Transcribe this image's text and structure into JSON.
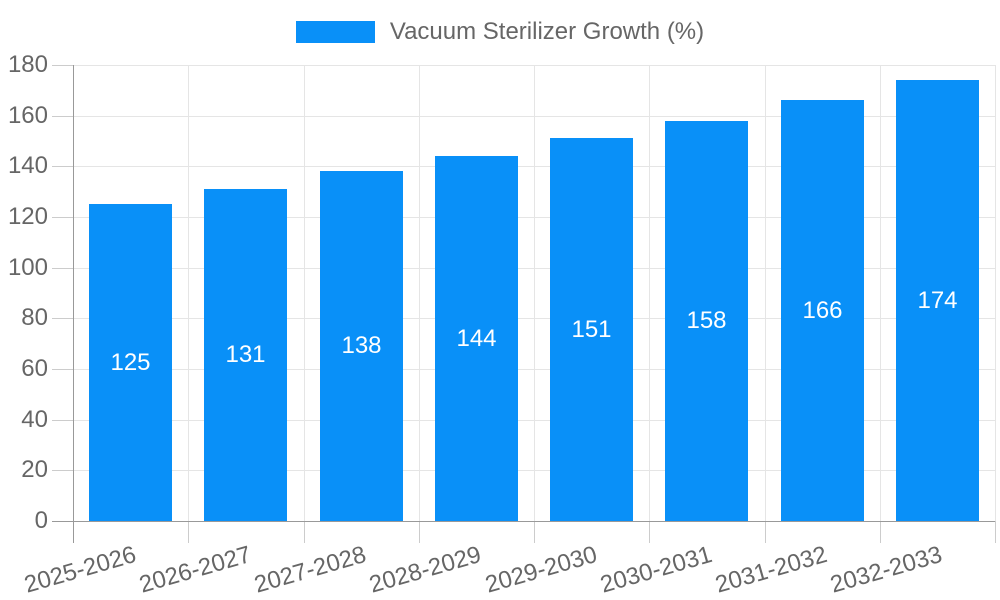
{
  "chart_data": {
    "type": "bar",
    "title": "",
    "legend": [
      "Vacuum Sterilizer Growth (%)"
    ],
    "legend_position": "top",
    "categories": [
      "2025-2026",
      "2026-2027",
      "2027-2028",
      "2028-2029",
      "2029-2030",
      "2030-2031",
      "2031-2032",
      "2032-2033"
    ],
    "series": [
      {
        "name": "Vacuum Sterilizer Growth (%)",
        "values": [
          125,
          131,
          138,
          144,
          151,
          158,
          166,
          174
        ]
      }
    ],
    "values": [
      125,
      131,
      138,
      144,
      151,
      158,
      166,
      174
    ],
    "value_labels_shown": true,
    "xlabel": "",
    "ylabel": "",
    "ylim": [
      0,
      180
    ],
    "ytick_step": 20,
    "yticks": [
      0,
      20,
      40,
      60,
      80,
      100,
      120,
      140,
      160,
      180
    ],
    "grid": true,
    "colors": {
      "bar": "#0990F8",
      "value_label": "#FFFFFF",
      "axis_text": "#666666",
      "gridline": "#E5E5E5",
      "tick": "#CCCCCC",
      "axis_line": "#999999",
      "background": "#FFFFFF"
    }
  }
}
